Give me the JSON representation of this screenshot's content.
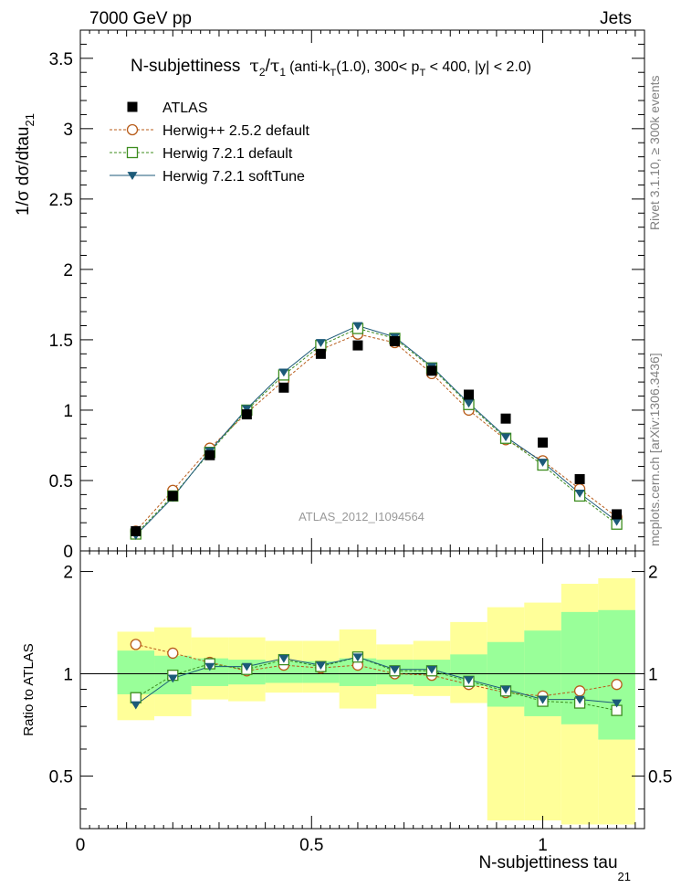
{
  "header": {
    "left": "7000 GeV pp",
    "right": "Jets"
  },
  "side_labels": {
    "rivet": "Rivet 3.1.10, ≥ 300k events",
    "mcplots": "mcplots.cern.ch [arXiv:1306.3436]"
  },
  "chart_data": {
    "type": "scatter",
    "title": {
      "main": "N-subjettiness",
      "tau2": "τ",
      "sub2": "2",
      "slash": "/",
      "tau1": "τ",
      "sub1": "1",
      "details_a": "(anti-k",
      "sub_T1": "T",
      "details_b": "(1.0), 300< p",
      "sub_T2": "T",
      "details_c": " < 400, |y| < 2.0)"
    },
    "ylabel": {
      "main": "1/σ dσ/dtau",
      "sub": "21"
    },
    "ratio_ylabel": "Ratio to ATLAS",
    "xlabel": {
      "main": "N-subjettiness tau",
      "sub": "21"
    },
    "watermark": "ATLAS_2012_I1094564",
    "xlim": [
      0,
      1.22
    ],
    "ylim": [
      0,
      3.7
    ],
    "ratio_ylim": [
      0.35,
      2.3
    ],
    "x_ticks": [
      {
        "value": 0,
        "label": "0"
      },
      {
        "value": 0.5,
        "label": "0.5"
      },
      {
        "value": 1,
        "label": "1"
      }
    ],
    "y_ticks": [
      {
        "value": 0,
        "label": "0"
      },
      {
        "value": 0.5,
        "label": "0.5"
      },
      {
        "value": 1,
        "label": "1"
      },
      {
        "value": 1.5,
        "label": "1.5"
      },
      {
        "value": 2,
        "label": "2"
      },
      {
        "value": 2.5,
        "label": "2.5"
      },
      {
        "value": 3,
        "label": "3"
      },
      {
        "value": 3.5,
        "label": "3.5"
      }
    ],
    "ratio_y_ticks": [
      {
        "value": 0.5,
        "label": "0.5"
      },
      {
        "value": 1,
        "label": "1"
      },
      {
        "value": 2,
        "label": "2"
      }
    ],
    "x": [
      0.12,
      0.2,
      0.28,
      0.36,
      0.44,
      0.52,
      0.6,
      0.68,
      0.76,
      0.84,
      0.92,
      1.0,
      1.08,
      1.16
    ],
    "bin_edges": [
      0.08,
      0.16,
      0.24,
      0.32,
      0.4,
      0.48,
      0.56,
      0.64,
      0.72,
      0.8,
      0.88,
      0.96,
      1.04,
      1.12,
      1.2
    ],
    "series": [
      {
        "name": "ATLAS",
        "marker": "filled-square",
        "color": "#000000",
        "values": [
          0.14,
          0.39,
          0.68,
          0.97,
          1.16,
          1.4,
          1.46,
          1.49,
          1.28,
          1.11,
          0.94,
          0.77,
          0.51,
          0.26
        ]
      },
      {
        "name": "Herwig++ 2.5.2 default",
        "marker": "open-circle",
        "line": "dashed",
        "color": "#b85c1a",
        "values": [
          0.14,
          0.43,
          0.73,
          0.98,
          1.21,
          1.43,
          1.54,
          1.48,
          1.26,
          1.0,
          0.79,
          0.64,
          0.44,
          0.24
        ]
      },
      {
        "name": "Herwig 7.2.1 default",
        "marker": "open-square",
        "line": "dashed",
        "color": "#3c8c1e",
        "values": [
          0.12,
          0.39,
          0.7,
          1.0,
          1.25,
          1.46,
          1.58,
          1.51,
          1.3,
          1.04,
          0.8,
          0.61,
          0.39,
          0.19
        ]
      },
      {
        "name": "Herwig 7.2.1 softTune",
        "marker": "filled-triangle-down",
        "line": "solid",
        "color": "#1c5a78",
        "values": [
          0.11,
          0.38,
          0.71,
          1.01,
          1.27,
          1.48,
          1.6,
          1.52,
          1.31,
          1.05,
          0.81,
          0.63,
          0.41,
          0.21
        ]
      }
    ],
    "ratio_series": [
      {
        "name": "Herwig++ 2.5.2 default",
        "values": [
          1.22,
          1.15,
          1.08,
          1.02,
          1.06,
          1.04,
          1.06,
          1.0,
          0.99,
          0.93,
          0.88,
          0.86,
          0.89,
          0.93
        ]
      },
      {
        "name": "Herwig 7.2.1 default",
        "values": [
          0.85,
          0.99,
          1.07,
          1.03,
          1.1,
          1.05,
          1.12,
          1.02,
          1.02,
          0.95,
          0.89,
          0.83,
          0.82,
          0.78
        ]
      },
      {
        "name": "Herwig 7.2.1 softTune",
        "values": [
          0.81,
          0.97,
          1.05,
          1.05,
          1.11,
          1.06,
          1.12,
          1.03,
          1.03,
          0.96,
          0.9,
          0.84,
          0.84,
          0.82
        ]
      }
    ],
    "ratio_bands": {
      "yellow": [
        [
          0.73,
          1.33
        ],
        [
          0.75,
          1.37
        ],
        [
          0.84,
          1.28
        ],
        [
          0.83,
          1.28
        ],
        [
          0.88,
          1.25
        ],
        [
          0.88,
          1.25
        ],
        [
          0.79,
          1.35
        ],
        [
          0.87,
          1.22
        ],
        [
          0.86,
          1.25
        ],
        [
          0.82,
          1.42
        ],
        [
          0.37,
          1.57
        ],
        [
          0.37,
          1.62
        ],
        [
          0.36,
          1.84
        ],
        [
          0.36,
          1.91
        ]
      ],
      "green": [
        [
          0.87,
          1.17
        ],
        [
          0.87,
          1.13
        ],
        [
          0.92,
          1.11
        ],
        [
          0.93,
          1.1
        ],
        [
          0.94,
          1.09
        ],
        [
          0.94,
          1.09
        ],
        [
          0.92,
          1.11
        ],
        [
          0.93,
          1.1
        ],
        [
          0.92,
          1.1
        ],
        [
          0.92,
          1.14
        ],
        [
          0.8,
          1.24
        ],
        [
          0.75,
          1.34
        ],
        [
          0.71,
          1.52
        ],
        [
          0.64,
          1.54
        ]
      ]
    }
  }
}
